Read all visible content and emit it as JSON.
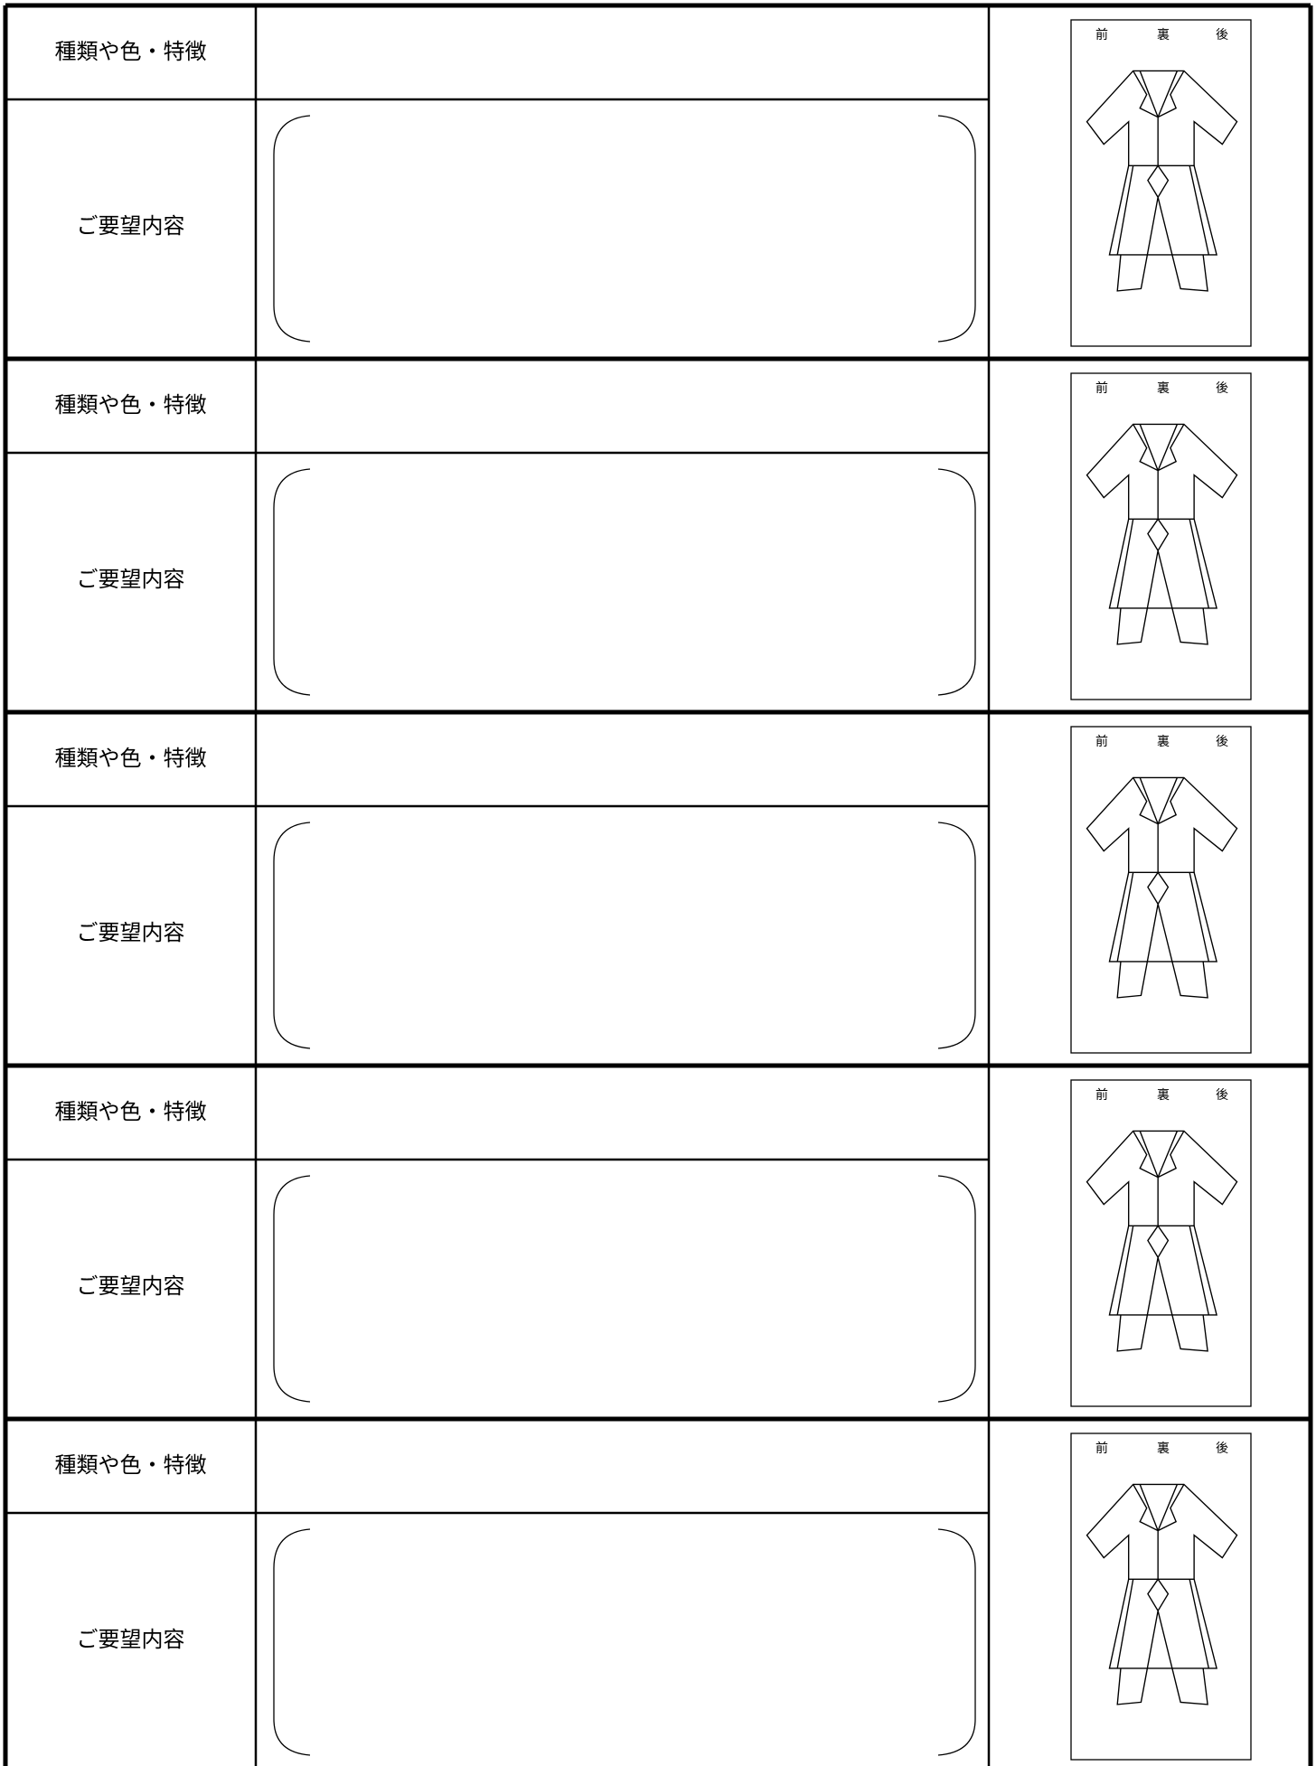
{
  "rows": [
    {
      "type_label": "種類や色・特徴",
      "request_label": "ご要望内容",
      "diagram_labels": [
        "前",
        "裏",
        "後"
      ]
    },
    {
      "type_label": "種類や色・特徴",
      "request_label": "ご要望内容",
      "diagram_labels": [
        "前",
        "裏",
        "後"
      ]
    },
    {
      "type_label": "種類や色・特徴",
      "request_label": "ご要望内容",
      "diagram_labels": [
        "前",
        "裏",
        "後"
      ]
    },
    {
      "type_label": "種類や色・特徴",
      "request_label": "ご要望内容",
      "diagram_labels": [
        "前",
        "裏",
        "後"
      ]
    },
    {
      "type_label": "種類や色・特徴",
      "request_label": "ご要望内容",
      "diagram_labels": [
        "前",
        "裏",
        "後"
      ]
    }
  ]
}
